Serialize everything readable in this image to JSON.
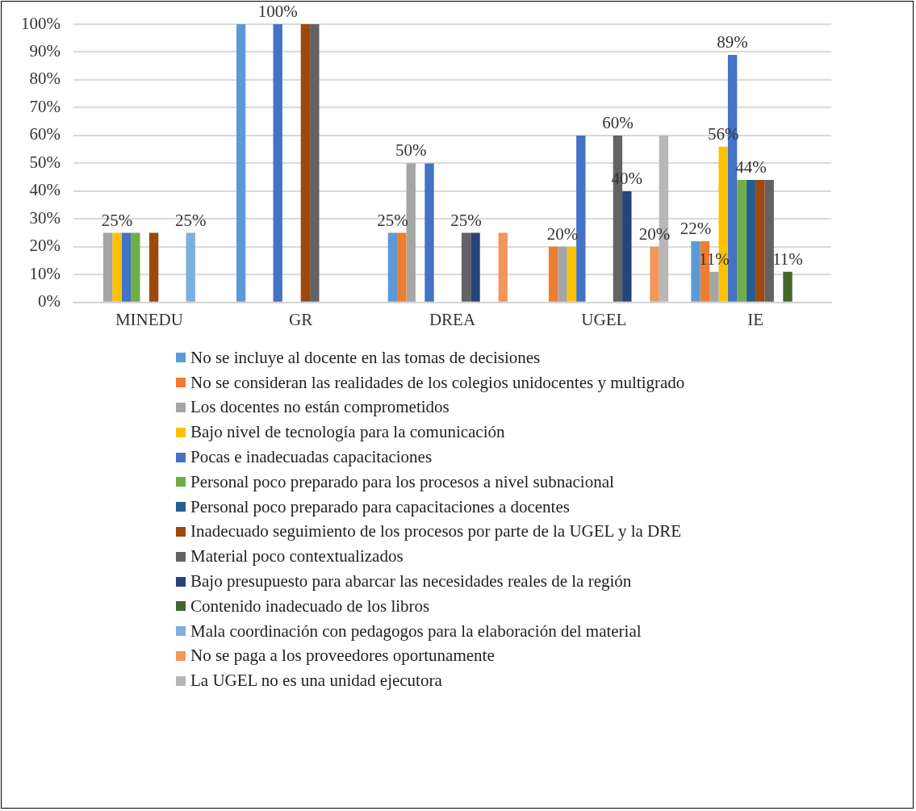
{
  "chart_data": {
    "type": "bar",
    "categories": [
      "MINEDU",
      "GR",
      "DREA",
      "UGEL",
      "IE"
    ],
    "ylim": [
      0,
      100
    ],
    "yticks": [
      {
        "value": 0,
        "label": "0%"
      },
      {
        "value": 10,
        "label": "10%"
      },
      {
        "value": 20,
        "label": "20%"
      },
      {
        "value": 30,
        "label": "30%"
      },
      {
        "value": 40,
        "label": "40%"
      },
      {
        "value": 50,
        "label": "50%"
      },
      {
        "value": 60,
        "label": "60%"
      },
      {
        "value": 70,
        "label": "70%"
      },
      {
        "value": 80,
        "label": "80%"
      },
      {
        "value": 90,
        "label": "90%"
      },
      {
        "value": 100,
        "label": "100%"
      }
    ],
    "grid": "y",
    "legend": "bottom",
    "series": [
      {
        "name": "No se incluye al docente en las tomas de decisiones",
        "color": "#5b9bd5",
        "values": [
          0,
          100,
          25,
          0,
          22
        ],
        "value_labels": [
          null,
          null,
          "25%",
          null,
          "22%"
        ]
      },
      {
        "name": "No se consideran las realidades de los colegios unidocentes y multigrado",
        "color": "#ed7d31",
        "values": [
          0,
          0,
          25,
          20,
          22
        ],
        "value_labels": [
          null,
          null,
          null,
          null,
          null
        ]
      },
      {
        "name": "Los docentes no están comprometidos",
        "color": "#a5a5a5",
        "values": [
          25,
          0,
          50,
          20,
          11
        ],
        "value_labels": [
          null,
          null,
          "50%",
          "20%",
          "11%"
        ]
      },
      {
        "name": "Bajo nivel de tecnología para la comunicación",
        "color": "#ffc000",
        "values": [
          25,
          0,
          0,
          20,
          56
        ],
        "value_labels": [
          "25%",
          null,
          null,
          null,
          "56%"
        ]
      },
      {
        "name": "Pocas e inadecuadas capacitaciones",
        "color": "#4472c4",
        "values": [
          25,
          100,
          50,
          60,
          89
        ],
        "value_labels": [
          null,
          "100%",
          null,
          null,
          "89%"
        ]
      },
      {
        "name": "Personal poco preparado para los procesos a nivel subnacional",
        "color": "#70ad47",
        "values": [
          25,
          0,
          0,
          0,
          44
        ],
        "value_labels": [
          null,
          null,
          null,
          null,
          null
        ]
      },
      {
        "name": "Personal poco preparado para capacitaciones a docentes",
        "color": "#255e91",
        "values": [
          0,
          0,
          0,
          0,
          44
        ],
        "value_labels": [
          null,
          null,
          null,
          null,
          "44%"
        ]
      },
      {
        "name": "Inadecuado seguimiento de los procesos por parte de la UGEL y la DRE",
        "color": "#9e480e",
        "values": [
          25,
          100,
          0,
          0,
          44
        ],
        "value_labels": [
          null,
          null,
          null,
          null,
          null
        ]
      },
      {
        "name": "Material poco contextualizados",
        "color": "#636363",
        "values": [
          0,
          100,
          25,
          60,
          44
        ],
        "value_labels": [
          null,
          null,
          "25%",
          "60%",
          null
        ]
      },
      {
        "name": "Bajo presupuesto para abarcar las necesidades reales de la región",
        "color": "#264478",
        "values": [
          0,
          0,
          25,
          40,
          0
        ],
        "value_labels": [
          null,
          null,
          null,
          "40%",
          null
        ]
      },
      {
        "name": "Contenido inadecuado de los libros",
        "color": "#43682b",
        "values": [
          0,
          0,
          0,
          0,
          11
        ],
        "value_labels": [
          null,
          null,
          null,
          null,
          "11%"
        ]
      },
      {
        "name": "Mala coordinación con pedagogos para la elaboración del material",
        "color": "#7cafdd",
        "values": [
          25,
          0,
          0,
          0,
          0
        ],
        "value_labels": [
          "25%",
          null,
          null,
          null,
          null
        ]
      },
      {
        "name": "No se paga a los proveedores oportunamente",
        "color": "#f1975a",
        "values": [
          0,
          0,
          25,
          20,
          0
        ],
        "value_labels": [
          null,
          null,
          null,
          "20%",
          null
        ]
      },
      {
        "name": "La UGEL no es una unidad ejecutora",
        "color": "#b7b7b7",
        "values": [
          0,
          0,
          0,
          60,
          0
        ],
        "value_labels": [
          null,
          null,
          null,
          null,
          null
        ]
      }
    ]
  }
}
